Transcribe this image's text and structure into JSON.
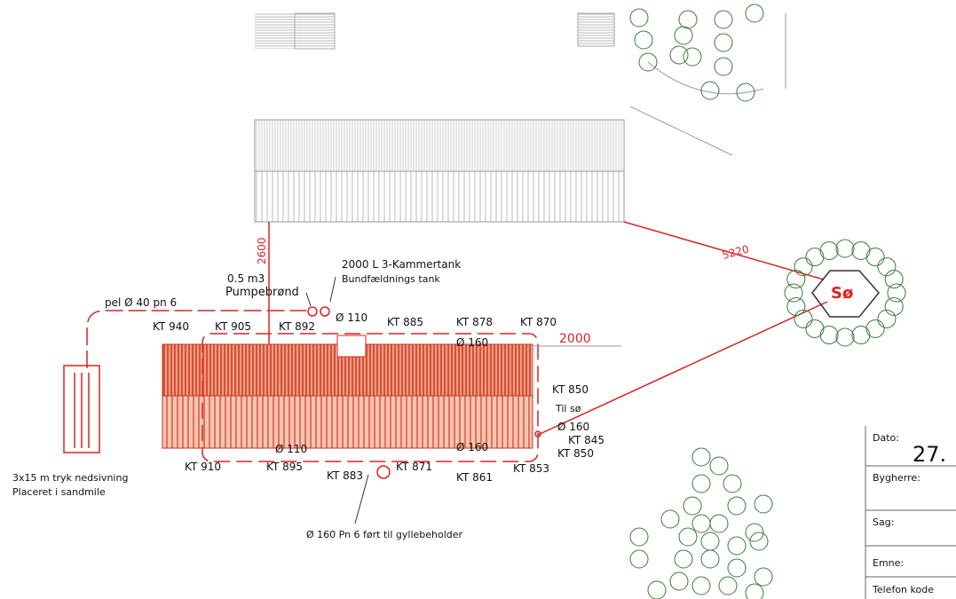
{
  "plan": {
    "pipe_label": "pel Ø 40 pn 6",
    "pump_volume": "0.5 m3",
    "pump_name": "Pumpebrønd",
    "tank_title": "2000 L 3-Kammertank",
    "tank_name": "Bundfældnings tank",
    "dim_2600": "2600",
    "dim_5220": "5220",
    "dim_2000": "2000",
    "lake": "Sø",
    "levels_top": [
      "KT 940",
      "KT 905",
      "KT 892",
      "Ø 110",
      "KT 885",
      "KT 878",
      "KT 870",
      "Ø 160"
    ],
    "levels_right": [
      "KT 850",
      "Til sø",
      "Ø 160",
      "KT 845",
      "KT 850",
      "KT 853"
    ],
    "levels_bottom": [
      "KT 910",
      "KT 895",
      "Ø 110",
      "KT 883",
      "KT 871",
      "KT 861",
      "Ø 160"
    ],
    "drain_line1": "3x15 m tryk nedsivning",
    "drain_line2": "Placeret i sandmile",
    "outlet": "Ø 160 Pn 6 ført til gyllebeholder"
  },
  "title_block": {
    "date_label": "Dato:",
    "date_value": "27.",
    "fields": [
      "Bygherre:",
      "Sag:",
      "Emne:",
      "Telefon kode"
    ]
  }
}
